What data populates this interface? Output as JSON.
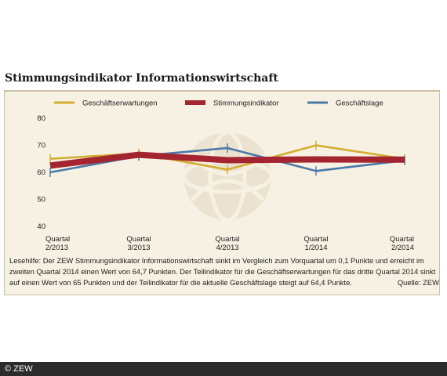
{
  "title": "Stimmungsindikator Informationswirtschaft",
  "caption": "Lesehilfe: Der ZEW Stimmungsindikator Informationswirtschaft sinkt im Vergleich zum Vorquartal um 0,1 Punkte und erreicht im zweiten Quartal 2014 einen Wert von 64,7 Punkten. Der Teilindikator für die Geschäftserwartungen für das dritte Quartal 2014 sinkt auf einen Wert von 65 Punkten und der Teilindikator für die aktuelle Geschäftslage steigt auf 64,4 Punkte.",
  "source": "Quelle: ZEW",
  "footer": "© ZEW",
  "chart_data": {
    "type": "line",
    "categories": [
      [
        "Quartal",
        "2/2013"
      ],
      [
        "Quartal",
        "3/2013"
      ],
      [
        "Quartal",
        "4/2013"
      ],
      [
        "Quartal",
        "1/2014"
      ],
      [
        "Quartal",
        "2/2014"
      ]
    ],
    "ylim": [
      40,
      80
    ],
    "yticks": [
      40,
      50,
      60,
      70,
      80
    ],
    "legend_position": "top",
    "series": [
      {
        "name": "Geschäftserwartungen",
        "color": "#d4ad2e",
        "values": [
          65,
          67,
          61,
          70,
          65
        ]
      },
      {
        "name": "Stimmungsindikator",
        "color": "#a4252f",
        "values": [
          62.5,
          66.5,
          64.5,
          64.8,
          64.7
        ]
      },
      {
        "name": "Geschäftslage",
        "color": "#4a79a7",
        "values": [
          60,
          66,
          69,
          60.5,
          64.4
        ]
      }
    ]
  }
}
